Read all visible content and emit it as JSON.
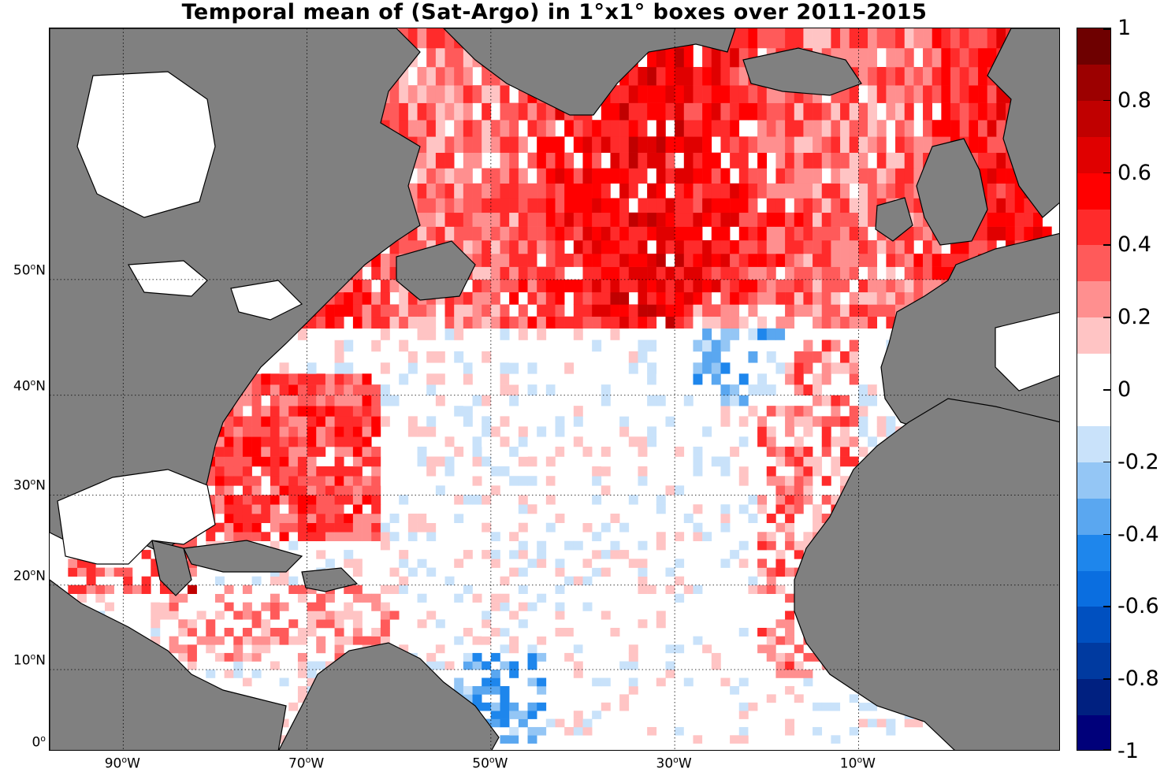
{
  "title": "Temporal mean of (Sat-Argo) in 1°x1° boxes over 2011-2015",
  "map": {
    "land_color": "#808080",
    "ocean_color": "#ffffff",
    "lon_labels": [
      {
        "deg": "90",
        "hemi": "W",
        "lon": -90
      },
      {
        "deg": "70",
        "hemi": "W",
        "lon": -70
      },
      {
        "deg": "50",
        "hemi": "W",
        "lon": -50
      },
      {
        "deg": "30",
        "hemi": "W",
        "lon": -30
      },
      {
        "deg": "10",
        "hemi": "W",
        "lon": -10
      }
    ],
    "lat_labels": [
      {
        "deg": "50",
        "hemi": "N",
        "lat": 50
      },
      {
        "deg": "40",
        "hemi": "N",
        "lat": 40
      },
      {
        "deg": "30",
        "hemi": "N",
        "lat": 30
      },
      {
        "deg": "20",
        "hemi": "N",
        "lat": 20
      },
      {
        "deg": "10",
        "hemi": "N",
        "lat": 10
      },
      {
        "deg": "0",
        "hemi": "",
        "lat": 0
      }
    ],
    "extent": {
      "lon_min": -98,
      "lon_max": 12,
      "lat_min": 0,
      "lat_max": 66
    }
  },
  "colorbar": {
    "min": -1,
    "max": 1,
    "tick_labels": [
      "1",
      "0.8",
      "0.6",
      "0.4",
      "0.2",
      "0",
      "-0.2",
      "-0.4",
      "-0.6",
      "-0.8",
      "-1"
    ],
    "colors_top_to_bottom": [
      "#6e0000",
      "#9c0000",
      "#c00000",
      "#e00000",
      "#ff0000",
      "#ff2b2b",
      "#ff5a5a",
      "#ff8f8f",
      "#ffc4c4",
      "#ffffff",
      "#ffffff",
      "#c9e2fa",
      "#94c6f5",
      "#5aa7f0",
      "#1e86ec",
      "#0a6ee0",
      "#0050c0",
      "#003aa0",
      "#002080",
      "#00007a"
    ]
  }
}
